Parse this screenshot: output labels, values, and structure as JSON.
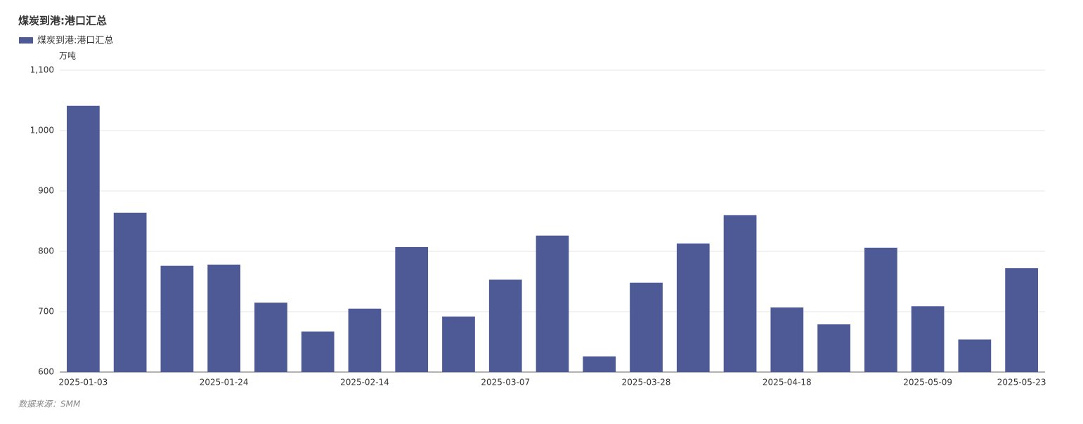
{
  "chart_data": {
    "type": "bar",
    "title": "煤炭到港:港口汇总",
    "unit": "万吨",
    "source": "数据来源：SMM",
    "categories": [
      "2025-01-03",
      null,
      null,
      "2025-01-24",
      null,
      null,
      "2025-02-14",
      null,
      null,
      "2025-03-07",
      null,
      null,
      "2025-03-28",
      null,
      null,
      "2025-04-18",
      null,
      null,
      "2025-05-09",
      null,
      "2025-05-23"
    ],
    "series": [
      {
        "name": "煤炭到港:港口汇总",
        "color": "#4e5a96",
        "values": [
          1041,
          864,
          776,
          778,
          715,
          667,
          705,
          807,
          692,
          753,
          826,
          626,
          748,
          813,
          860,
          707,
          679,
          806,
          709,
          654,
          772
        ]
      }
    ],
    "ylim": [
      600,
      1100
    ],
    "yticks": [
      {
        "value": 600,
        "label": "600"
      },
      {
        "value": 700,
        "label": "700"
      },
      {
        "value": 800,
        "label": "800"
      },
      {
        "value": 900,
        "label": "900"
      },
      {
        "value": 1000,
        "label": "1,000"
      },
      {
        "value": 1100,
        "label": "1,100"
      }
    ],
    "grid": true
  }
}
